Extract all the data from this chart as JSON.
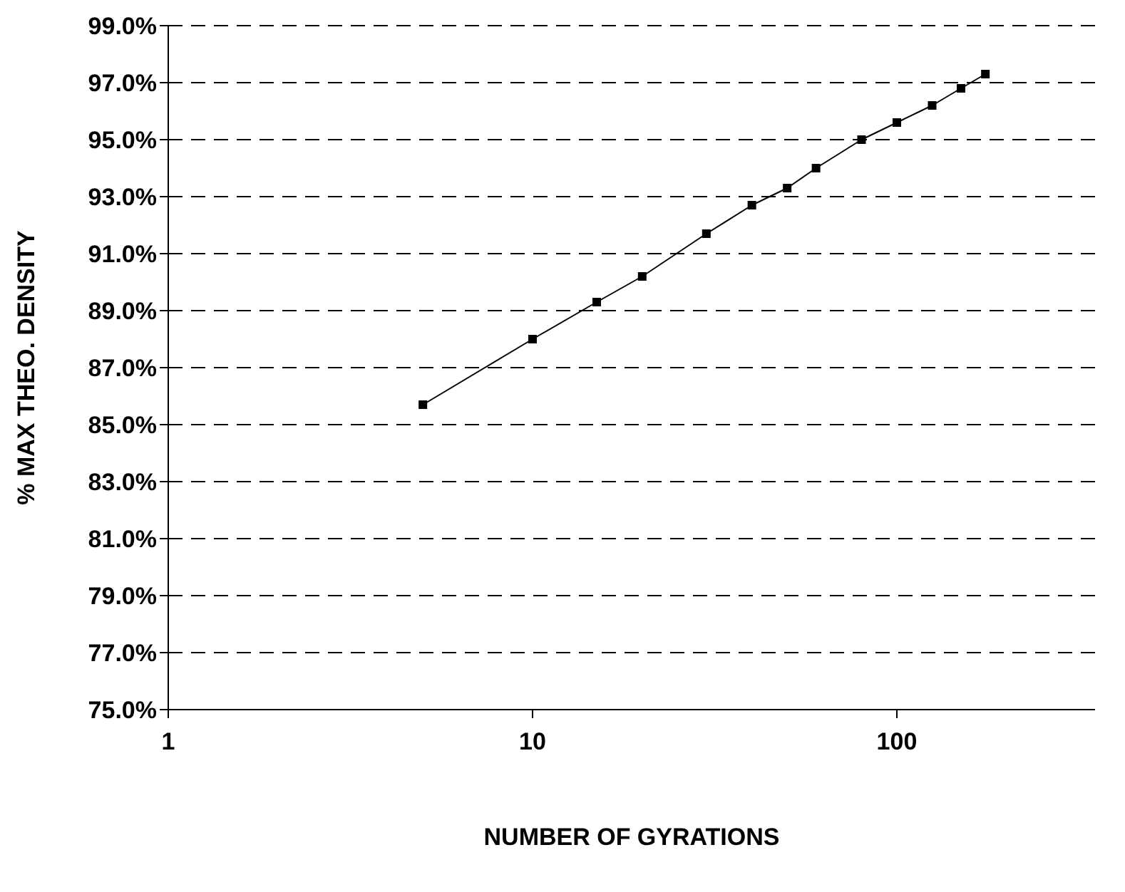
{
  "chart_data": {
    "type": "line",
    "xlabel": "NUMBER OF GYRATIONS",
    "ylabel": "% MAX THEO. DENSITY",
    "x": [
      5,
      10,
      15,
      20,
      30,
      40,
      50,
      60,
      80,
      100,
      125,
      150,
      175
    ],
    "series": [
      {
        "color": "#000000",
        "values": [
          85.7,
          88.0,
          89.3,
          90.2,
          91.7,
          92.7,
          93.3,
          94.0,
          95.0,
          95.6,
          96.2,
          96.8,
          97.3
        ]
      }
    ],
    "log": "x",
    "xlim": [
      1,
      350
    ],
    "xticks": [
      1,
      10,
      100
    ],
    "ylim": [
      75,
      99
    ],
    "yticks": [
      {
        "value": 75,
        "label": "75.0%"
      },
      {
        "value": 77,
        "label": "77.0%"
      },
      {
        "value": 79,
        "label": "79.0%"
      },
      {
        "value": 81,
        "label": "81.0%"
      },
      {
        "value": 83,
        "label": "83.0%"
      },
      {
        "value": 85,
        "label": "85.0%"
      },
      {
        "value": 87,
        "label": "87.0%"
      },
      {
        "value": 89,
        "label": "89.0%"
      },
      {
        "value": 91,
        "label": "91.0%"
      },
      {
        "value": 93,
        "label": "93.0%"
      },
      {
        "value": 95,
        "label": "95.0%"
      },
      {
        "value": 97,
        "label": "97.0%"
      },
      {
        "value": 99,
        "label": "99.0%"
      }
    ],
    "grid": "y",
    "marker": "square",
    "line_style": "solid",
    "legend": false
  }
}
